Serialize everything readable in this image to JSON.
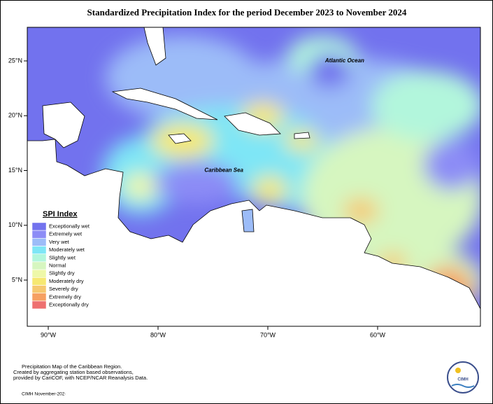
{
  "map": {
    "title": "Standardized Precipitation Index for the period December 2023 to November 2024",
    "lat_ticks": [
      {
        "value": 25,
        "label": "25°N"
      },
      {
        "value": 20,
        "label": "20°N"
      },
      {
        "value": 15,
        "label": "15°N"
      },
      {
        "value": 10,
        "label": "10°N"
      },
      {
        "value": 5,
        "label": "5°N"
      }
    ],
    "lon_ticks": [
      {
        "value": -90,
        "label": "90°W"
      },
      {
        "value": -80,
        "label": "80°W"
      },
      {
        "value": -70,
        "label": "70°W"
      },
      {
        "value": -60,
        "label": "60°W"
      }
    ],
    "places": [
      {
        "label": "Atlantic Ocean",
        "lon": -63,
        "lat": 25
      },
      {
        "label": "Caribbean Sea",
        "lon": -74,
        "lat": 15
      }
    ],
    "legend": {
      "title": "SPI Index",
      "items": [
        {
          "label": "Exceptionally wet",
          "color": "#7272ee"
        },
        {
          "label": "Extremely wet",
          "color": "#8c8cf6"
        },
        {
          "label": "Very wet",
          "color": "#9cbcf8"
        },
        {
          "label": "Moderately wet",
          "color": "#7ee6f6"
        },
        {
          "label": "Slightly wet",
          "color": "#b2f6dc"
        },
        {
          "label": "Normal",
          "color": "#d6f6c0"
        },
        {
          "label": "Slightly dry",
          "color": "#eef8a8"
        },
        {
          "label": "Moderately dry",
          "color": "#f6e872"
        },
        {
          "label": "Severely dry",
          "color": "#f6c870"
        },
        {
          "label": "Extremely dry",
          "color": "#f6a062"
        },
        {
          "label": "Exceptionally dry",
          "color": "#ee7070"
        }
      ]
    },
    "footer": [
      "Precipitation Map of the Caribbean Region.",
      "Created by aggregating station based observations,",
      "provided by CariCOF, with NCEP/NCAR Reanalysis Data."
    ],
    "credit": "CIMH November-202·",
    "logo": "CIMH"
  }
}
